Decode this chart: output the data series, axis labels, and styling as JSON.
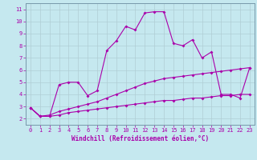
{
  "xlabel": "Windchill (Refroidissement éolien,°C)",
  "background_color": "#c5e8ef",
  "line_color": "#aa00aa",
  "grid_color": "#b0cdd4",
  "spine_color": "#7799aa",
  "x_upper": [
    0,
    1,
    2,
    3,
    4,
    5,
    6,
    7,
    8,
    9,
    10,
    11,
    12,
    13,
    14,
    15,
    16,
    17,
    18,
    19,
    20,
    21,
    22,
    23
  ],
  "y_upper": [
    2.9,
    2.2,
    2.2,
    4.8,
    5.0,
    5.0,
    3.9,
    4.3,
    7.6,
    8.4,
    9.6,
    9.3,
    10.7,
    10.8,
    10.8,
    8.2,
    8.0,
    8.5,
    7.0,
    7.5,
    4.0,
    4.0,
    3.7,
    6.2
  ],
  "x_mid": [
    0,
    1,
    2,
    3,
    4,
    5,
    6,
    7,
    8,
    9,
    10,
    11,
    12,
    13,
    14,
    15,
    16,
    17,
    18,
    19,
    20,
    21,
    22,
    23
  ],
  "y_mid": [
    2.9,
    2.2,
    2.3,
    2.6,
    2.8,
    3.0,
    3.2,
    3.4,
    3.7,
    4.0,
    4.3,
    4.6,
    4.9,
    5.1,
    5.3,
    5.4,
    5.5,
    5.6,
    5.7,
    5.8,
    5.9,
    6.0,
    6.1,
    6.2
  ],
  "x_low": [
    0,
    1,
    2,
    3,
    4,
    5,
    6,
    7,
    8,
    9,
    10,
    11,
    12,
    13,
    14,
    15,
    16,
    17,
    18,
    19,
    20,
    21,
    22,
    23
  ],
  "y_low": [
    2.9,
    2.2,
    2.2,
    2.3,
    2.5,
    2.6,
    2.7,
    2.8,
    2.9,
    3.0,
    3.1,
    3.2,
    3.3,
    3.4,
    3.5,
    3.5,
    3.6,
    3.7,
    3.7,
    3.8,
    3.9,
    3.9,
    4.0,
    4.0
  ],
  "xlim": [
    -0.5,
    23.5
  ],
  "ylim": [
    1.5,
    11.5
  ],
  "yticks": [
    2,
    3,
    4,
    5,
    6,
    7,
    8,
    9,
    10,
    11
  ],
  "xticks": [
    0,
    1,
    2,
    3,
    4,
    5,
    6,
    7,
    8,
    9,
    10,
    11,
    12,
    13,
    14,
    15,
    16,
    17,
    18,
    19,
    20,
    21,
    22,
    23
  ],
  "tick_fontsize": 5.0,
  "xlabel_fontsize": 5.5
}
